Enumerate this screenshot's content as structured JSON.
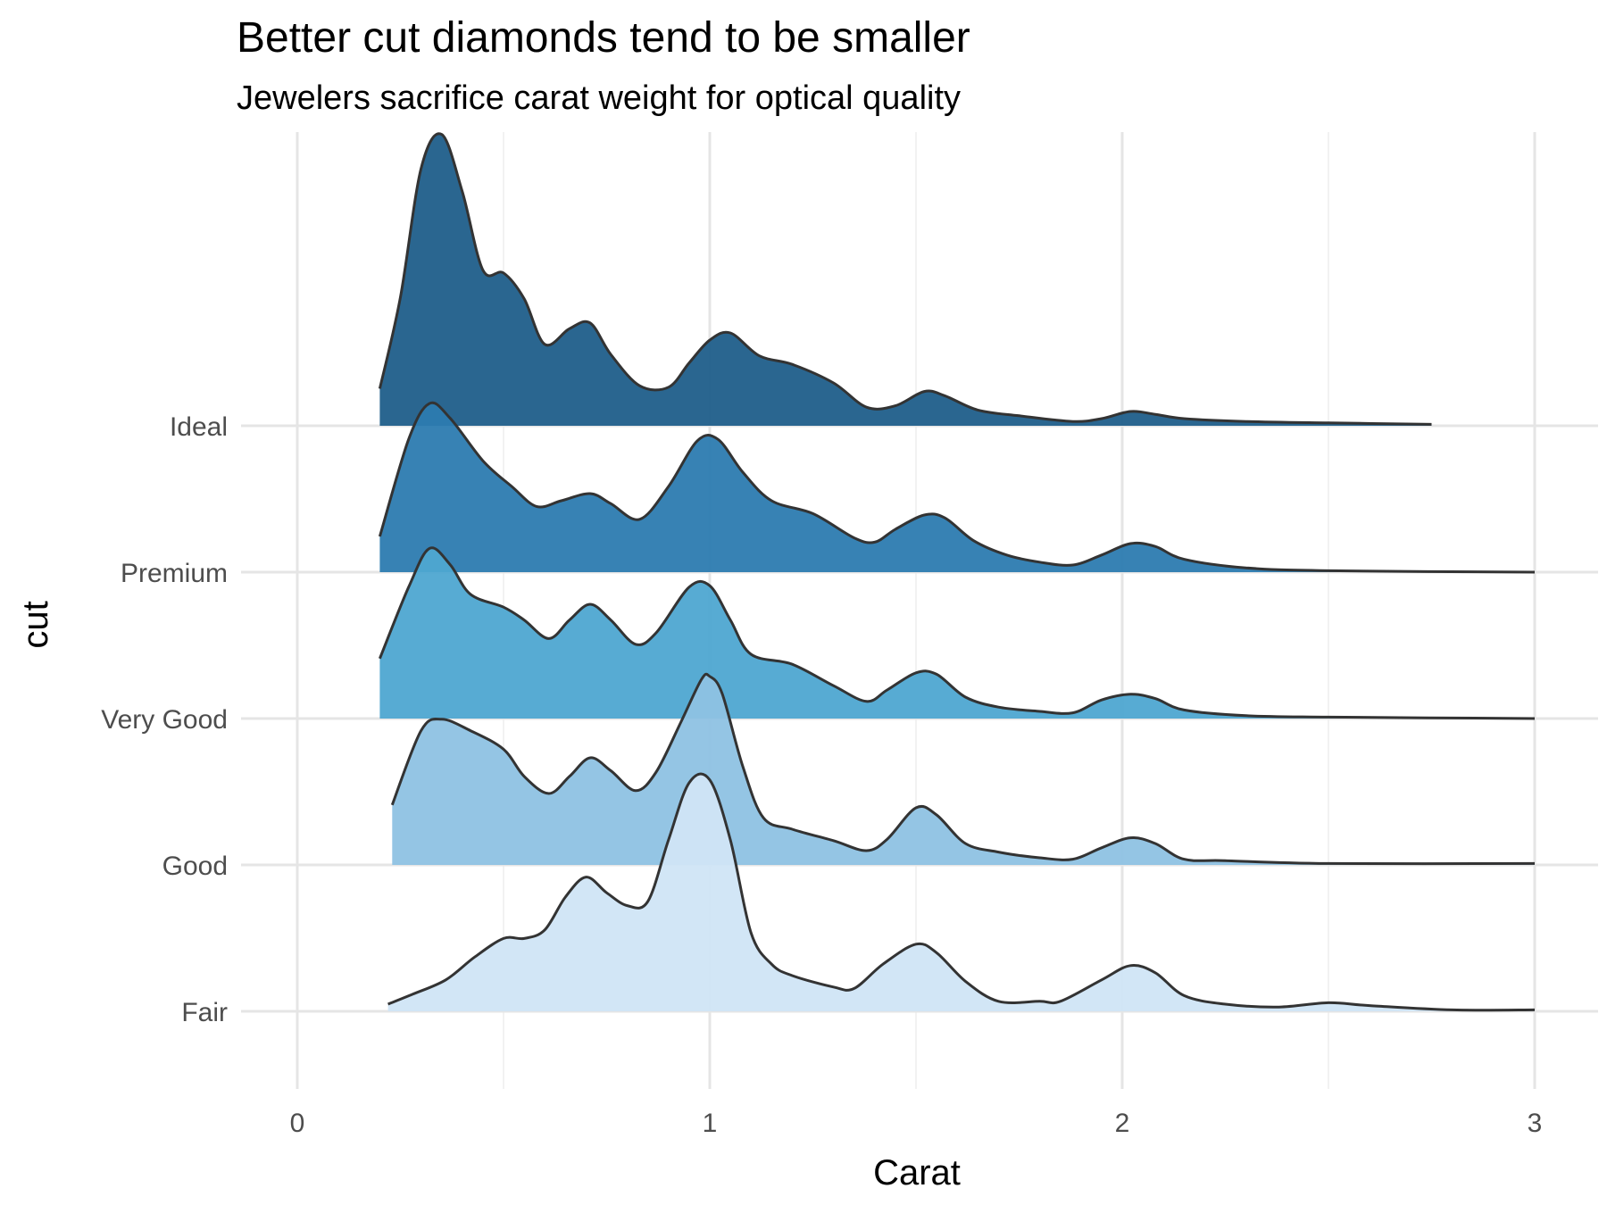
{
  "chart_data": {
    "type": "ridgeline",
    "title": "Better cut diamonds tend to be smaller",
    "subtitle": "Jewelers sacrifice carat weight for optical quality",
    "xlabel": "Carat",
    "ylabel": "cut",
    "xlim": [
      0,
      3
    ],
    "x_ticks": [
      "0",
      "1",
      "2",
      "3"
    ],
    "grid": true,
    "series": [
      {
        "name": "Fair",
        "color": "#d0e5f5",
        "points": [
          [
            0.22,
            0.05
          ],
          [
            0.28,
            0.12
          ],
          [
            0.36,
            0.22
          ],
          [
            0.43,
            0.38
          ],
          [
            0.5,
            0.51
          ],
          [
            0.55,
            0.51
          ],
          [
            0.6,
            0.57
          ],
          [
            0.65,
            0.8
          ],
          [
            0.7,
            0.94
          ],
          [
            0.75,
            0.83
          ],
          [
            0.8,
            0.74
          ],
          [
            0.85,
            0.77
          ],
          [
            0.9,
            1.2
          ],
          [
            0.95,
            1.6
          ],
          [
            1.0,
            1.62
          ],
          [
            1.05,
            1.2
          ],
          [
            1.1,
            0.55
          ],
          [
            1.15,
            0.33
          ],
          [
            1.2,
            0.25
          ],
          [
            1.3,
            0.17
          ],
          [
            1.35,
            0.16
          ],
          [
            1.42,
            0.33
          ],
          [
            1.5,
            0.47
          ],
          [
            1.55,
            0.41
          ],
          [
            1.62,
            0.21
          ],
          [
            1.7,
            0.07
          ],
          [
            1.8,
            0.07
          ],
          [
            1.85,
            0.07
          ],
          [
            1.95,
            0.22
          ],
          [
            2.02,
            0.32
          ],
          [
            2.08,
            0.27
          ],
          [
            2.15,
            0.11
          ],
          [
            2.25,
            0.05
          ],
          [
            2.38,
            0.03
          ],
          [
            2.5,
            0.06
          ],
          [
            2.6,
            0.04
          ],
          [
            2.8,
            0.01
          ],
          [
            3.0,
            0.01
          ]
        ]
      },
      {
        "name": "Good",
        "color": "#8ec2e3",
        "points": [
          [
            0.23,
            0.42
          ],
          [
            0.3,
            0.94
          ],
          [
            0.35,
            1.02
          ],
          [
            0.42,
            0.94
          ],
          [
            0.5,
            0.81
          ],
          [
            0.55,
            0.62
          ],
          [
            0.61,
            0.5
          ],
          [
            0.66,
            0.62
          ],
          [
            0.71,
            0.75
          ],
          [
            0.76,
            0.66
          ],
          [
            0.82,
            0.52
          ],
          [
            0.87,
            0.65
          ],
          [
            0.93,
            1.0
          ],
          [
            0.98,
            1.3
          ],
          [
            1.0,
            1.32
          ],
          [
            1.03,
            1.2
          ],
          [
            1.08,
            0.69
          ],
          [
            1.13,
            0.33
          ],
          [
            1.2,
            0.25
          ],
          [
            1.3,
            0.17
          ],
          [
            1.38,
            0.1
          ],
          [
            1.43,
            0.18
          ],
          [
            1.5,
            0.4
          ],
          [
            1.55,
            0.35
          ],
          [
            1.62,
            0.15
          ],
          [
            1.7,
            0.09
          ],
          [
            1.8,
            0.05
          ],
          [
            1.88,
            0.04
          ],
          [
            1.95,
            0.12
          ],
          [
            2.02,
            0.19
          ],
          [
            2.08,
            0.15
          ],
          [
            2.15,
            0.04
          ],
          [
            2.25,
            0.03
          ],
          [
            2.5,
            0.01
          ],
          [
            3.0,
            0.01
          ]
        ]
      },
      {
        "name": "Very Good",
        "color": "#4ea6d1",
        "points": [
          [
            0.2,
            0.42
          ],
          [
            0.27,
            0.92
          ],
          [
            0.32,
            1.19
          ],
          [
            0.37,
            1.08
          ],
          [
            0.42,
            0.87
          ],
          [
            0.5,
            0.78
          ],
          [
            0.55,
            0.69
          ],
          [
            0.61,
            0.56
          ],
          [
            0.66,
            0.69
          ],
          [
            0.71,
            0.8
          ],
          [
            0.76,
            0.69
          ],
          [
            0.82,
            0.52
          ],
          [
            0.87,
            0.6
          ],
          [
            0.95,
            0.92
          ],
          [
            1.0,
            0.93
          ],
          [
            1.05,
            0.69
          ],
          [
            1.1,
            0.45
          ],
          [
            1.2,
            0.38
          ],
          [
            1.3,
            0.23
          ],
          [
            1.38,
            0.12
          ],
          [
            1.43,
            0.2
          ],
          [
            1.5,
            0.32
          ],
          [
            1.55,
            0.31
          ],
          [
            1.62,
            0.15
          ],
          [
            1.7,
            0.08
          ],
          [
            1.8,
            0.05
          ],
          [
            1.88,
            0.04
          ],
          [
            1.95,
            0.13
          ],
          [
            2.02,
            0.17
          ],
          [
            2.08,
            0.14
          ],
          [
            2.15,
            0.06
          ],
          [
            2.3,
            0.02
          ],
          [
            2.5,
            0.01
          ],
          [
            3.0,
            0.0
          ]
        ]
      },
      {
        "name": "Premium",
        "color": "#2c7bb0",
        "points": [
          [
            0.2,
            0.25
          ],
          [
            0.27,
            0.93
          ],
          [
            0.32,
            1.18
          ],
          [
            0.37,
            1.08
          ],
          [
            0.45,
            0.78
          ],
          [
            0.52,
            0.6
          ],
          [
            0.58,
            0.46
          ],
          [
            0.64,
            0.5
          ],
          [
            0.71,
            0.55
          ],
          [
            0.76,
            0.48
          ],
          [
            0.83,
            0.37
          ],
          [
            0.9,
            0.6
          ],
          [
            0.97,
            0.92
          ],
          [
            1.02,
            0.93
          ],
          [
            1.08,
            0.7
          ],
          [
            1.15,
            0.5
          ],
          [
            1.25,
            0.41
          ],
          [
            1.35,
            0.24
          ],
          [
            1.4,
            0.21
          ],
          [
            1.45,
            0.3
          ],
          [
            1.52,
            0.4
          ],
          [
            1.57,
            0.38
          ],
          [
            1.64,
            0.22
          ],
          [
            1.72,
            0.12
          ],
          [
            1.8,
            0.07
          ],
          [
            1.88,
            0.05
          ],
          [
            1.95,
            0.12
          ],
          [
            2.02,
            0.2
          ],
          [
            2.08,
            0.18
          ],
          [
            2.15,
            0.09
          ],
          [
            2.3,
            0.03
          ],
          [
            2.5,
            0.01
          ],
          [
            3.0,
            0.0
          ]
        ]
      },
      {
        "name": "Ideal",
        "color": "#1f5e8a",
        "points": [
          [
            0.2,
            0.26
          ],
          [
            0.25,
            0.9
          ],
          [
            0.3,
            1.8
          ],
          [
            0.35,
            2.04
          ],
          [
            0.4,
            1.64
          ],
          [
            0.45,
            1.09
          ],
          [
            0.5,
            1.07
          ],
          [
            0.55,
            0.89
          ],
          [
            0.6,
            0.57
          ],
          [
            0.66,
            0.68
          ],
          [
            0.71,
            0.72
          ],
          [
            0.76,
            0.5
          ],
          [
            0.83,
            0.28
          ],
          [
            0.9,
            0.27
          ],
          [
            0.95,
            0.44
          ],
          [
            1.0,
            0.6
          ],
          [
            1.05,
            0.65
          ],
          [
            1.12,
            0.49
          ],
          [
            1.2,
            0.43
          ],
          [
            1.3,
            0.3
          ],
          [
            1.38,
            0.13
          ],
          [
            1.45,
            0.14
          ],
          [
            1.52,
            0.24
          ],
          [
            1.57,
            0.21
          ],
          [
            1.65,
            0.11
          ],
          [
            1.75,
            0.07
          ],
          [
            1.88,
            0.03
          ],
          [
            1.95,
            0.05
          ],
          [
            2.02,
            0.1
          ],
          [
            2.08,
            0.08
          ],
          [
            2.15,
            0.05
          ],
          [
            2.3,
            0.03
          ],
          [
            2.5,
            0.02
          ],
          [
            2.75,
            0.01
          ]
        ]
      }
    ]
  }
}
